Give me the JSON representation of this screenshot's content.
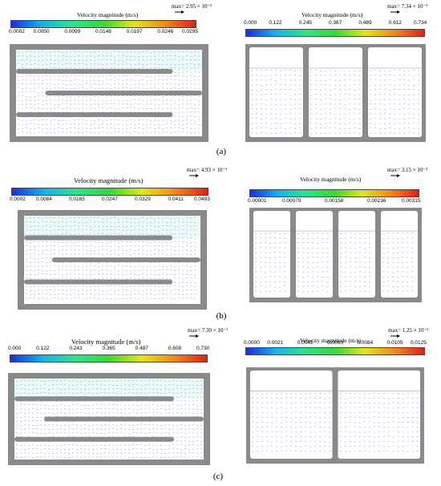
{
  "figure_rows": [
    {
      "caption": "(a)",
      "left": {
        "title": "Velocity magnitude (m/s)",
        "max_label": "max= 2.95 × 10⁻²",
        "ticks": [
          "0.0002",
          "0.0050",
          "0.0099",
          "0.0148",
          "0.0197",
          "0.0246",
          "0.0295"
        ],
        "walls": 3
      },
      "right": {
        "title": "Velocity magnitude (m/s)",
        "max_label": "max= 7.34 × 10⁻¹",
        "ticks": [
          "0.000",
          "0.122",
          "0.245",
          "0.367",
          "0.489",
          "0.612",
          "0.734"
        ],
        "chambers": 3
      }
    },
    {
      "caption": "(b)",
      "left": {
        "title": "Velocity magnitude (m/s)",
        "max_label": "max= 4.93 × 10⁻²",
        "ticks": [
          "0.0002",
          "0.0084",
          "0.0165",
          "0.0247",
          "0.0329",
          "0.0411",
          "0.0493"
        ],
        "walls": 3
      },
      "right": {
        "title": "Velocity magnitude (m/s)",
        "max_label": "max= 3.15 × 10⁻³",
        "ticks": [
          "0.00001",
          "0.00079",
          "0.00158",
          "0.00236",
          "0.00315"
        ],
        "chambers": 4
      }
    },
    {
      "caption": "(c)",
      "left": {
        "title": "Velocity magnitude (m/s)",
        "max_label": "max= 7.30 × 10⁻¹",
        "ticks": [
          "0.000",
          "0.122",
          "0.243",
          "0.365",
          "0.487",
          "0.608",
          "0.730"
        ],
        "walls": 3
      },
      "right": {
        "title": "Velocity magnitude (m/s)",
        "max_label": "max= 1.25 × 10⁻²",
        "ticks": [
          "0.0000",
          "0.0021",
          "0.0042",
          "0.0063",
          "0.0084",
          "0.0105",
          "0.0125"
        ],
        "chambers": 2
      }
    }
  ],
  "colors": {
    "wall_gray": "#8a8a8a",
    "fluid_white": "#ffffff",
    "vector_blue": "#6b6fd8",
    "colormap": [
      "#1a2fd6",
      "#16b3ee",
      "#2ee38a",
      "#38d838",
      "#e3e51c",
      "#f08a1a",
      "#e02018"
    ]
  }
}
